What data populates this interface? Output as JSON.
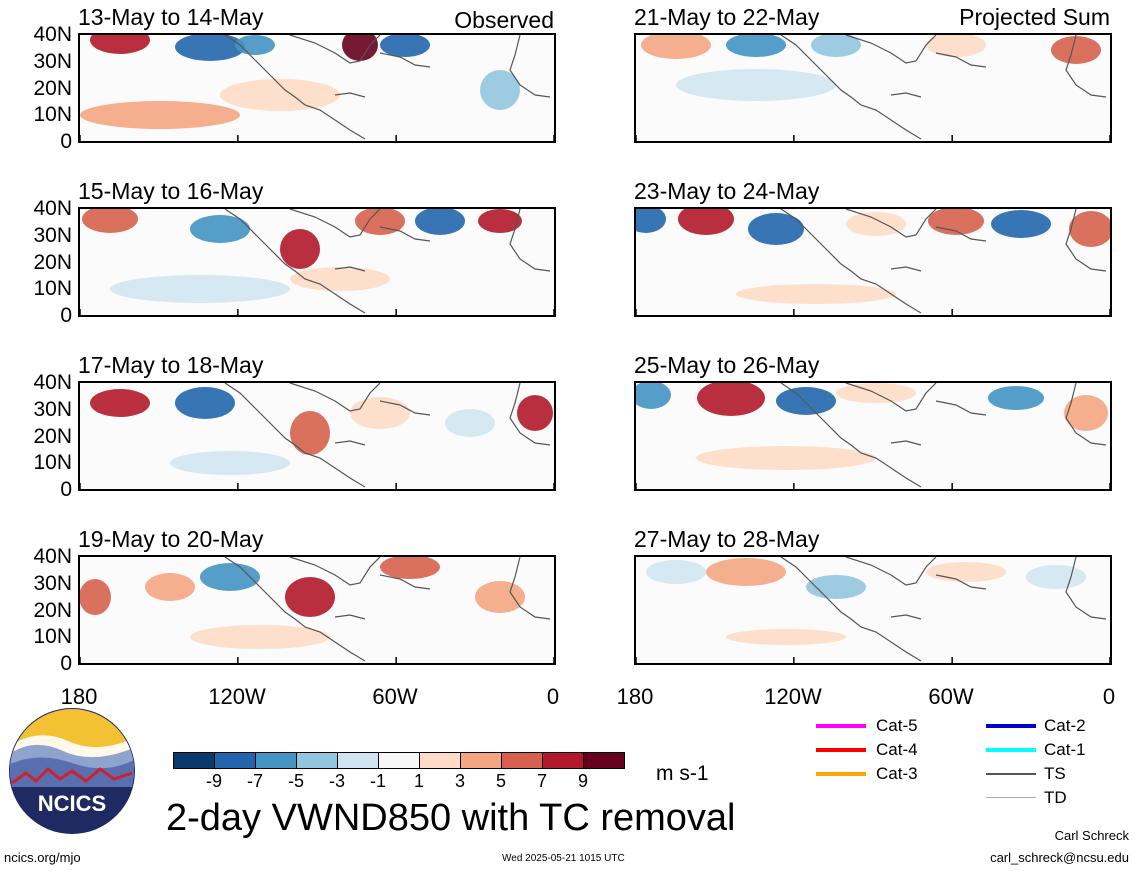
{
  "group_labels": {
    "observed": "Observed",
    "projected": "Projected Sum"
  },
  "panels": [
    {
      "title": "13-May to 14-May",
      "group": "observed"
    },
    {
      "title": "15-May to 16-May",
      "group": "observed"
    },
    {
      "title": "17-May to 18-May",
      "group": "observed"
    },
    {
      "title": "19-May to 20-May",
      "group": "observed"
    },
    {
      "title": "21-May to 22-May",
      "group": "projected"
    },
    {
      "title": "23-May to 24-May",
      "group": "projected"
    },
    {
      "title": "25-May to 26-May",
      "group": "projected"
    },
    {
      "title": "27-May to 28-May",
      "group": "projected"
    }
  ],
  "axes": {
    "lat_ticks": [
      "40N",
      "30N",
      "20N",
      "10N",
      "0"
    ],
    "lon_ticks": [
      "180",
      "120W",
      "60W",
      "0"
    ]
  },
  "colorbar": {
    "labels": [
      "-9",
      "-7",
      "-5",
      "-3",
      "-1",
      "1",
      "3",
      "5",
      "7",
      "9"
    ],
    "colors": [
      "#0a3a6b",
      "#2166ac",
      "#4393c3",
      "#92c5de",
      "#d1e5f0",
      "#f7f7f7",
      "#fddbc7",
      "#f4a582",
      "#d6604d",
      "#b2182b",
      "#67001f"
    ],
    "units": "m s-1"
  },
  "title": "2-day VWND850 with TC removal",
  "tc_legend": [
    {
      "label": "Cat-5",
      "color": "#ff00ff"
    },
    {
      "label": "Cat-4",
      "color": "#ff0000"
    },
    {
      "label": "Cat-3",
      "color": "#ffa500"
    },
    {
      "label": "Cat-2",
      "color": "#0000cc"
    },
    {
      "label": "Cat-1",
      "color": "#00ffff"
    },
    {
      "label": "TS",
      "color": "#555555"
    },
    {
      "label": "TD",
      "color": "#aaaaaa"
    }
  ],
  "logo": {
    "text": "NCICS"
  },
  "footer": {
    "url": "ncics.org/mjo",
    "timestamp": "Wed 2025-05-21 1015 UTC",
    "author": "Carl Schreck",
    "email": "carl_schreck@ncsu.edu"
  }
}
